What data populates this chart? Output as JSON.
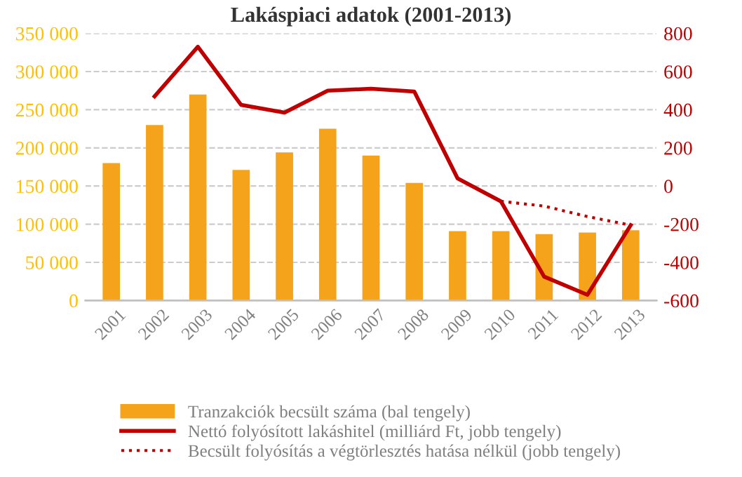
{
  "chart_data": {
    "type": "bar",
    "title": "Lakáspiaci adatok (2001-2013)",
    "categories": [
      "2001",
      "2002",
      "2003",
      "2004",
      "2005",
      "2006",
      "2007",
      "2008",
      "2009",
      "2010",
      "2011",
      "2012",
      "2013"
    ],
    "series": [
      {
        "name": "Tranzakciók becsült száma (bal tengely)",
        "color": "#f5a31b",
        "values": [
          180000,
          230000,
          270000,
          171000,
          194000,
          225000,
          190000,
          154000,
          91000,
          91000,
          87000,
          89000,
          92000
        ]
      },
      {
        "name": "Nettó folyósított lakáshitel (milliárd Ft, jobb tengely)",
        "type": "line",
        "axis": "y2",
        "color": "#c00000",
        "line_style": "solid",
        "values": [
          null,
          470,
          730,
          425,
          385,
          500,
          510,
          495,
          40,
          -80,
          -475,
          -570,
          -205
        ]
      },
      {
        "name": "Becsült folyósítás a végtörlesztés hatása nélkül (jobb tengely)",
        "type": "line",
        "axis": "y2",
        "color": "#c00000",
        "line_style": "dotted",
        "values": [
          null,
          null,
          null,
          null,
          null,
          null,
          null,
          null,
          null,
          -80,
          -105,
          -160,
          -205
        ]
      }
    ],
    "ylim": [
      0,
      350000
    ],
    "yticks": [
      {
        "value": 0,
        "label": "0"
      },
      {
        "value": 50000,
        "label": "50 000"
      },
      {
        "value": 100000,
        "label": "100 000"
      },
      {
        "value": 150000,
        "label": "150 000"
      },
      {
        "value": 200000,
        "label": "200 000"
      },
      {
        "value": 250000,
        "label": "250 000"
      },
      {
        "value": 300000,
        "label": "300 000"
      },
      {
        "value": 350000,
        "label": "350 000"
      }
    ],
    "y2lim": [
      -600,
      800
    ],
    "y2ticks": [
      -600,
      -400,
      -200,
      0,
      200,
      400,
      600,
      800
    ],
    "grid": "y",
    "legend": "bottom"
  }
}
